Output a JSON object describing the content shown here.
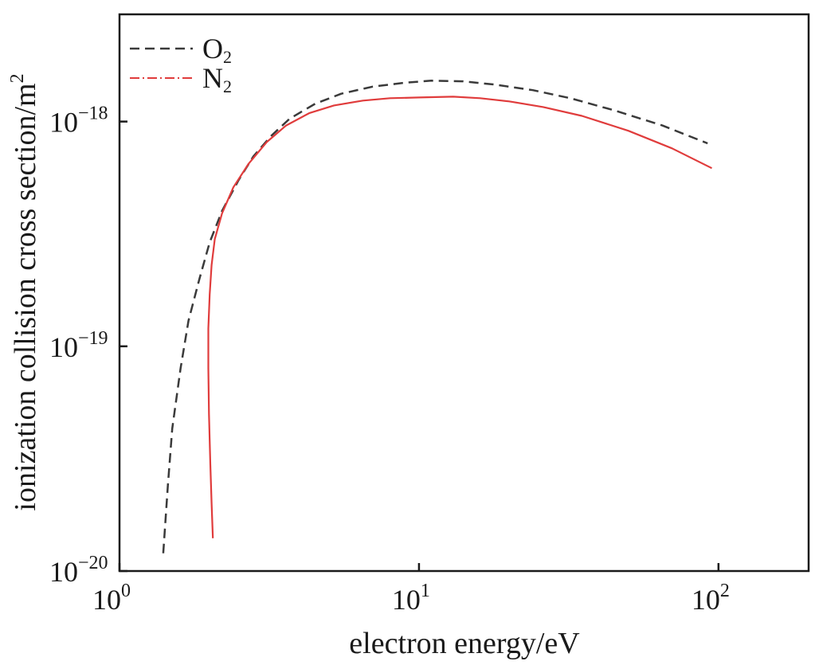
{
  "chart_data": {
    "type": "line",
    "title": "",
    "xlabel": "electron energy/eV",
    "ylabel": "ionization collision cross section/m",
    "ylabel_superscript": "2",
    "xscale": "log",
    "yscale": "log",
    "xlim": [
      1,
      200
    ],
    "ylim": [
      1e-20,
      3e-18
    ],
    "x_ticks": [
      {
        "value": 1,
        "base": "10",
        "exp": "0"
      },
      {
        "value": 10,
        "base": "10",
        "exp": "1"
      },
      {
        "value": 100,
        "base": "10",
        "exp": "2"
      }
    ],
    "y_ticks": [
      {
        "value": 1e-20,
        "base": "10",
        "exp": "−20"
      },
      {
        "value": 1e-19,
        "base": "10",
        "exp": "−19"
      },
      {
        "value": 1e-18,
        "base": "10",
        "exp": "−18"
      }
    ],
    "grid": false,
    "legend_position": "top-left",
    "series": [
      {
        "name": "O",
        "subscript": "2",
        "color": "#3a3a3a",
        "style": "dashed",
        "x": [
          1.4,
          1.45,
          1.5,
          1.6,
          1.7,
          1.85,
          2.0,
          2.2,
          2.5,
          2.8,
          3.2,
          3.7,
          4.5,
          5.5,
          7.0,
          9.0,
          11.0,
          14.0,
          18.0,
          24.0,
          32.0,
          45.0,
          65.0,
          92.0
        ],
        "y": [
          1.2e-20,
          2.4e-20,
          4.3e-20,
          8e-20,
          1.3e-19,
          2e-19,
          2.9e-19,
          4e-19,
          5.5e-19,
          7e-19,
          8.6e-19,
          1.03e-18,
          1.2e-18,
          1.33e-18,
          1.43e-18,
          1.49e-18,
          1.52e-18,
          1.51e-18,
          1.46e-18,
          1.38e-18,
          1.27e-18,
          1.12e-18,
          9.6e-19,
          8e-19
        ]
      },
      {
        "name": "N",
        "subscript": "2",
        "color": "#e03c3c",
        "style": "solid",
        "x": [
          2.05,
          2.03,
          2.01,
          1.99,
          1.98,
          1.98,
          2.0,
          2.03,
          2.08,
          2.2,
          2.4,
          2.7,
          3.1,
          3.6,
          4.3,
          5.2,
          6.5,
          8.0,
          10.0,
          13.0,
          16.0,
          20.0,
          26.0,
          35.0,
          50.0,
          70.0,
          95.0
        ],
        "y": [
          1.4e-20,
          2e-20,
          3e-20,
          5e-20,
          8e-20,
          1.2e-19,
          1.7e-19,
          2.3e-19,
          3e-19,
          3.9e-19,
          5.1e-19,
          6.5e-19,
          8.1e-19,
          9.6e-19,
          1.09e-18,
          1.18e-18,
          1.24e-18,
          1.27e-18,
          1.28e-18,
          1.29e-18,
          1.27e-18,
          1.23e-18,
          1.16e-18,
          1.06e-18,
          9.1e-19,
          7.6e-19,
          6.2e-19
        ]
      }
    ]
  }
}
